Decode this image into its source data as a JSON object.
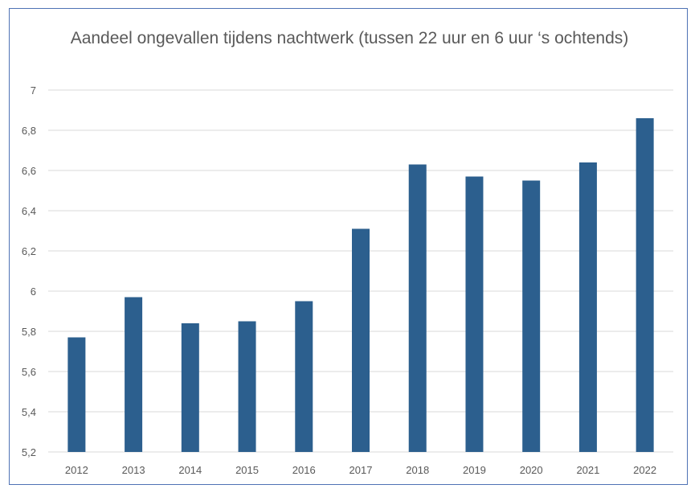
{
  "chart_data": {
    "type": "bar",
    "title": "Aandeel ongevallen tijdens nachtwerk (tussen 22 uur en 6 uur ‘s ochtends)",
    "xlabel": "",
    "ylabel": "",
    "categories": [
      "2012",
      "2013",
      "2014",
      "2015",
      "2016",
      "2017",
      "2018",
      "2019",
      "2020",
      "2021",
      "2022"
    ],
    "values": [
      5.77,
      5.97,
      5.84,
      5.85,
      5.95,
      6.31,
      6.63,
      6.57,
      6.55,
      6.64,
      6.86
    ],
    "ylim": [
      5.2,
      7
    ],
    "yticks": [
      5.2,
      5.4,
      5.6,
      5.8,
      6,
      6.2,
      6.4,
      6.6,
      6.8,
      7
    ],
    "ytick_labels": [
      "5,2",
      "5,4",
      "5,6",
      "5,8",
      "6",
      "6,2",
      "6,4",
      "6,6",
      "6,8",
      "7"
    ],
    "grid": true,
    "legend": "none",
    "colors": {
      "bar": "#2c5f8e",
      "grid": "#d9d9d9",
      "border": "#4f72b5",
      "text": "#595959"
    }
  }
}
